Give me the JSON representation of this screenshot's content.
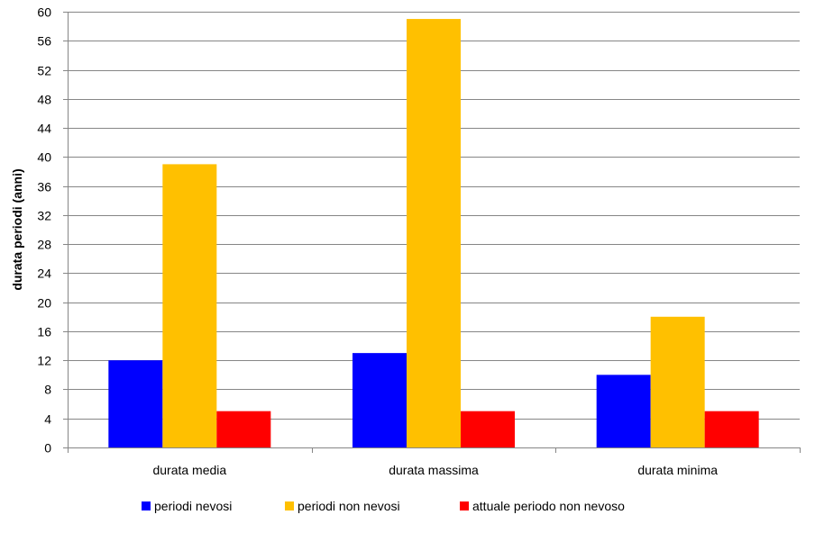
{
  "chart_data": {
    "type": "bar",
    "title": "",
    "xlabel": "",
    "ylabel": "durata periodi (anni)",
    "ylim": [
      0,
      60
    ],
    "yticks": [
      0,
      4,
      8,
      12,
      16,
      20,
      24,
      28,
      32,
      36,
      40,
      44,
      48,
      52,
      56,
      60
    ],
    "grid": true,
    "legend_position": "bottom",
    "categories": [
      "durata media",
      "durata massima",
      "durata minima"
    ],
    "series": [
      {
        "name": "periodi nevosi",
        "color": "#0000FF",
        "values": [
          12,
          13,
          10
        ]
      },
      {
        "name": "periodi non nevosi",
        "color": "#FFC000",
        "values": [
          39,
          59,
          18
        ]
      },
      {
        "name": "attuale periodo non nevoso",
        "color": "#FF0000",
        "values": [
          5,
          5,
          5
        ]
      }
    ]
  }
}
